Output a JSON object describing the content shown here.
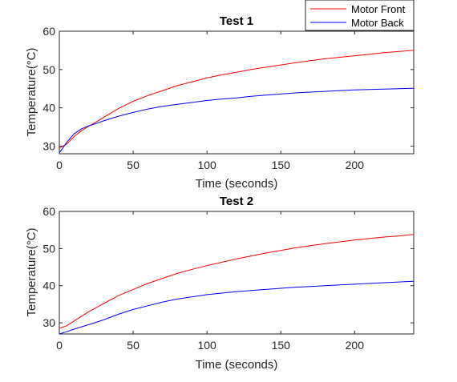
{
  "legend": {
    "entries": [
      {
        "label": "Motor Front",
        "color": "#ff0000"
      },
      {
        "label": "Motor Back",
        "color": "#0000ff"
      }
    ],
    "placement": "top-right"
  },
  "chart_data": [
    {
      "type": "line",
      "title": "Test 1",
      "xlabel": "Time (seconds)",
      "ylabel": "Temperature(°C)",
      "xlim": [
        0,
        240
      ],
      "ylim": [
        28,
        60
      ],
      "xticks": [
        "0",
        "50",
        "100",
        "150",
        "200"
      ],
      "yticks": [
        "30",
        "40",
        "50",
        "60"
      ],
      "grid": false,
      "series": [
        {
          "name": "Motor Front",
          "color": "#ff0000",
          "x": [
            0,
            5,
            10,
            15,
            20,
            25,
            30,
            40,
            50,
            60,
            70,
            80,
            90,
            100,
            110,
            120,
            130,
            140,
            150,
            160,
            170,
            180,
            190,
            200,
            210,
            220,
            230,
            240
          ],
          "y": [
            29.5,
            30.5,
            32.5,
            34.0,
            35.2,
            36.3,
            37.5,
            39.8,
            41.7,
            43.2,
            44.5,
            45.8,
            46.8,
            47.8,
            48.6,
            49.3,
            50.0,
            50.6,
            51.2,
            51.8,
            52.3,
            52.8,
            53.2,
            53.6,
            54.0,
            54.4,
            54.7,
            55.0
          ]
        },
        {
          "name": "Motor Back",
          "color": "#0000ff",
          "x": [
            0,
            2,
            5,
            10,
            15,
            20,
            25,
            30,
            40,
            50,
            60,
            70,
            80,
            90,
            100,
            110,
            120,
            130,
            140,
            150,
            160,
            170,
            180,
            190,
            200,
            210,
            220,
            230,
            240
          ],
          "y": [
            28.3,
            29.3,
            31.0,
            33.2,
            34.5,
            35.3,
            35.9,
            36.6,
            37.8,
            38.8,
            39.7,
            40.4,
            40.9,
            41.4,
            41.9,
            42.3,
            42.6,
            43.0,
            43.3,
            43.6,
            43.9,
            44.1,
            44.3,
            44.5,
            44.7,
            44.8,
            44.9,
            45.0,
            45.1
          ]
        }
      ]
    },
    {
      "type": "line",
      "title": "Test 2",
      "xlabel": "Time (seconds)",
      "ylabel": "Temperature(°C)",
      "xlim": [
        0,
        240
      ],
      "ylim": [
        27,
        60
      ],
      "xticks": [
        "0",
        "50",
        "100",
        "150",
        "200"
      ],
      "yticks": [
        "30",
        "40",
        "50",
        "60"
      ],
      "grid": false,
      "series": [
        {
          "name": "Motor Front",
          "color": "#ff0000",
          "x": [
            0,
            5,
            10,
            20,
            30,
            40,
            50,
            60,
            70,
            80,
            90,
            100,
            110,
            120,
            130,
            140,
            150,
            160,
            170,
            180,
            190,
            200,
            210,
            220,
            230,
            240
          ],
          "y": [
            28.5,
            29.2,
            30.5,
            33.0,
            35.2,
            37.3,
            39.0,
            40.6,
            42.0,
            43.3,
            44.4,
            45.4,
            46.3,
            47.2,
            48.0,
            48.8,
            49.5,
            50.2,
            50.8,
            51.3,
            51.8,
            52.3,
            52.7,
            53.1,
            53.4,
            53.8
          ]
        },
        {
          "name": "Motor Back",
          "color": "#0000ff",
          "x": [
            0,
            5,
            10,
            20,
            30,
            40,
            50,
            60,
            70,
            80,
            90,
            100,
            110,
            120,
            130,
            140,
            150,
            160,
            170,
            180,
            190,
            200,
            210,
            220,
            230,
            240
          ],
          "y": [
            27.0,
            27.6,
            28.3,
            29.5,
            30.8,
            32.3,
            33.6,
            34.6,
            35.6,
            36.4,
            37.0,
            37.6,
            38.0,
            38.4,
            38.7,
            39.0,
            39.3,
            39.6,
            39.8,
            40.0,
            40.2,
            40.4,
            40.6,
            40.8,
            41.0,
            41.2
          ]
        }
      ]
    }
  ]
}
